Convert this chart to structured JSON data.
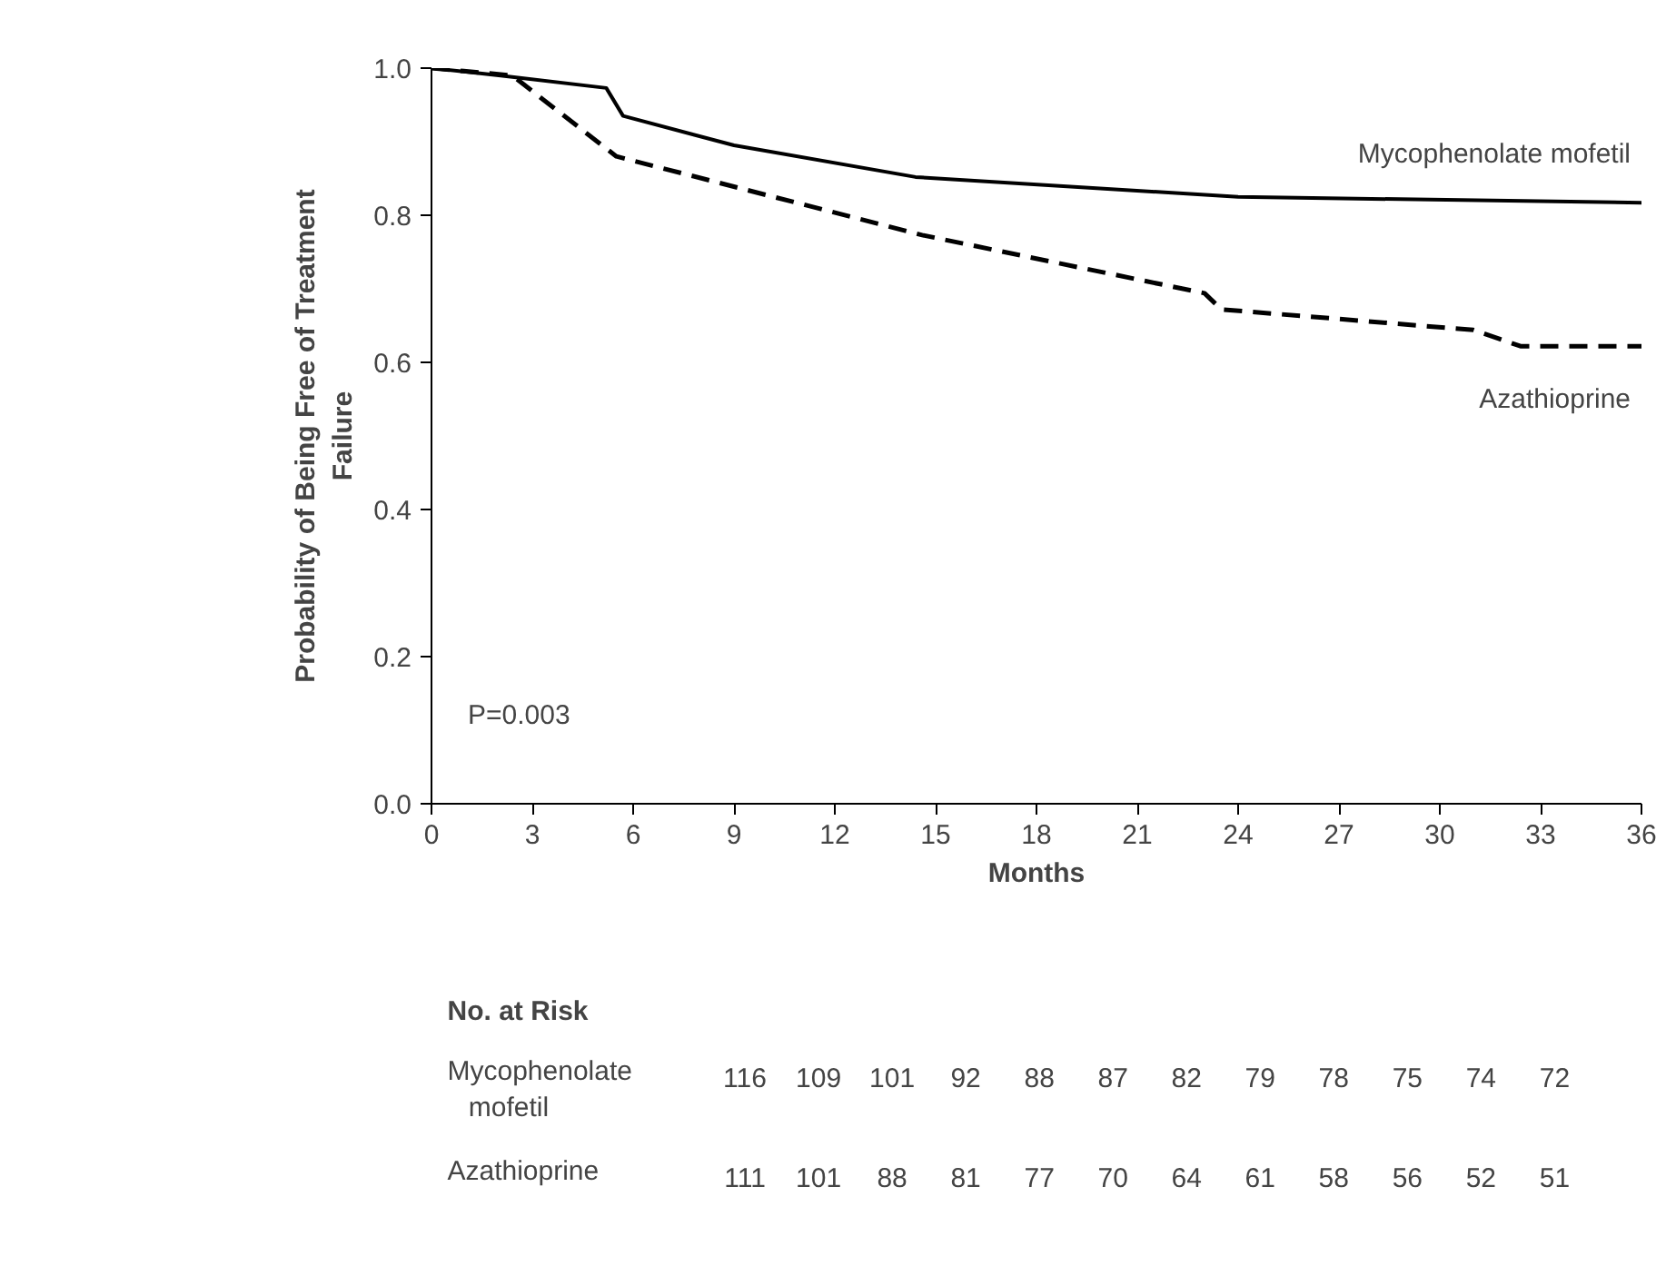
{
  "chart_data": {
    "type": "line",
    "xlabel": "Months",
    "ylabel": "Probability of Being Free of Treatment Failure",
    "series": [
      {
        "name": "Mycophenolate mofetil",
        "color": "#000000",
        "line_style": "solid",
        "x": [
          0,
          2,
          5.2,
          5.7,
          9,
          14.4,
          24,
          36
        ],
        "values": [
          1.0,
          0.99,
          0.973,
          0.935,
          0.895,
          0.852,
          0.825,
          0.817
        ]
      },
      {
        "name": "Azathioprine",
        "color": "#000000",
        "line_style": "dashed",
        "x": [
          0,
          2.4,
          5.5,
          14.6,
          23,
          23.5,
          31,
          32.4,
          36
        ],
        "values": [
          1.0,
          0.99,
          0.88,
          0.773,
          0.694,
          0.672,
          0.644,
          0.622,
          0.622
        ]
      }
    ],
    "xlim": [
      0,
      36
    ],
    "xticks": [
      0,
      3,
      6,
      9,
      12,
      15,
      18,
      21,
      24,
      27,
      30,
      33,
      36
    ],
    "ylim": [
      0,
      1
    ],
    "yticks": [
      {
        "value": 0,
        "label": "0.0"
      },
      0.2,
      0.4,
      0.6,
      0.8,
      {
        "value": 1,
        "label": "1.0"
      }
    ],
    "grid": false,
    "annotations": [
      "P=0.003",
      "No. at Risk",
      "Mycophenolate mofetil",
      "116",
      "109",
      "101",
      "92",
      "88",
      "87",
      "82",
      "79",
      "78",
      "75",
      "74",
      "72",
      "Azathioprine",
      "111",
      "101",
      "88",
      "81",
      "77",
      "70",
      "64",
      "61",
      "58",
      "56",
      "52",
      "51"
    ]
  }
}
